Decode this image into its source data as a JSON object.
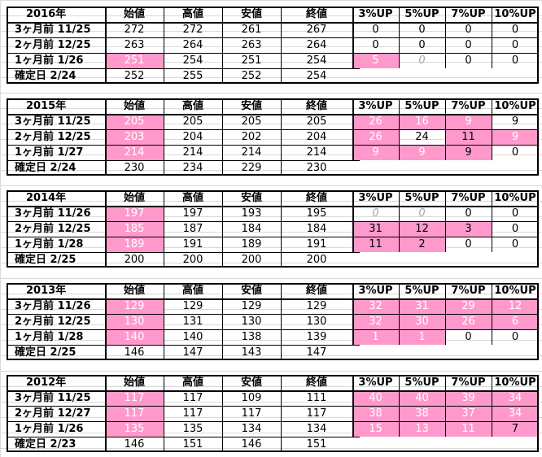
{
  "headers": [
    "始値",
    "高値",
    "安値",
    "終値",
    "3%UP",
    "5%UP",
    "7%UP",
    "10%UP"
  ],
  "blocks": [
    {
      "year": "2016年",
      "rows": [
        {
          "label": "3ヶ月前 11/25",
          "vals": [
            "272",
            "272",
            "261",
            "267",
            "0",
            "0",
            "0",
            "0"
          ]
        },
        {
          "label": "2ヶ月前 12/25",
          "vals": [
            "263",
            "264",
            "263",
            "264",
            "0",
            "0",
            "0",
            "0"
          ]
        },
        {
          "label": "1ヶ月前 1/26",
          "vals": [
            "251",
            "254",
            "251",
            "254",
            "5",
            "0",
            "0",
            "0"
          ]
        },
        {
          "label": "確定日 2/24",
          "vals": [
            "252",
            "255",
            "252",
            "254",
            "",
            "",
            "",
            ""
          ]
        }
      ]
    },
    {
      "year": "2015年",
      "rows": [
        {
          "label": "3ヶ月前 11/25",
          "vals": [
            "205",
            "205",
            "205",
            "205",
            "26",
            "16",
            "9",
            "9"
          ]
        },
        {
          "label": "2ヶ月前 12/25",
          "vals": [
            "203",
            "204",
            "202",
            "204",
            "26",
            "24",
            "11",
            "9"
          ]
        },
        {
          "label": "1ヶ月前 1/27",
          "vals": [
            "214",
            "214",
            "214",
            "214",
            "9",
            "9",
            "9",
            "0"
          ]
        },
        {
          "label": "確定日 2/24",
          "vals": [
            "230",
            "234",
            "229",
            "230",
            "",
            "",
            "",
            ""
          ]
        }
      ]
    },
    {
      "year": "2014年",
      "rows": [
        {
          "label": "3ヶ月前 11/26",
          "vals": [
            "197",
            "197",
            "193",
            "195",
            "0",
            "0",
            "0",
            "0"
          ]
        },
        {
          "label": "2ヶ月前 12/25",
          "vals": [
            "185",
            "187",
            "184",
            "184",
            "31",
            "12",
            "3",
            "0"
          ]
        },
        {
          "label": "1ヶ月前 1/28",
          "vals": [
            "189",
            "191",
            "189",
            "191",
            "11",
            "2",
            "0",
            "0"
          ]
        },
        {
          "label": "確定日 2/25",
          "vals": [
            "200",
            "200",
            "200",
            "200",
            "",
            "",
            "",
            ""
          ]
        }
      ]
    },
    {
      "year": "2013年",
      "rows": [
        {
          "label": "3ヶ月前 11/26",
          "vals": [
            "129",
            "129",
            "129",
            "129",
            "32",
            "31",
            "29",
            "12"
          ]
        },
        {
          "label": "2ヶ月前 12/25",
          "vals": [
            "130",
            "131",
            "130",
            "130",
            "32",
            "30",
            "26",
            "6"
          ]
        },
        {
          "label": "1ヶ月前 1/28",
          "vals": [
            "140",
            "140",
            "138",
            "139",
            "1",
            "1",
            "0",
            "0"
          ]
        },
        {
          "label": "確定日 2/25",
          "vals": [
            "146",
            "147",
            "143",
            "147",
            "",
            "",
            "",
            ""
          ]
        }
      ]
    },
    {
      "year": "2012年",
      "rows": [
        {
          "label": "3ヶ月前 11/25",
          "vals": [
            "117",
            "117",
            "109",
            "111",
            "40",
            "40",
            "39",
            "34"
          ]
        },
        {
          "label": "2ヶ月前 12/27",
          "vals": [
            "117",
            "117",
            "117",
            "117",
            "38",
            "38",
            "37",
            "34"
          ]
        },
        {
          "label": "1ヶ月前 1/26",
          "vals": [
            "135",
            "135",
            "134",
            "134",
            "15",
            "13",
            "11",
            "7"
          ]
        },
        {
          "label": "確定日 2/23",
          "vals": [
            "146",
            "151",
            "146",
            "151",
            "",
            "",
            "",
            ""
          ]
        }
      ]
    }
  ],
  "highlight_color": "#ff99cc",
  "highlights": [
    [
      [
        0,
        0,
        0,
        0,
        0,
        0,
        0,
        0
      ],
      [
        0,
        0,
        0,
        0,
        0,
        0,
        0,
        0
      ],
      [
        1,
        0,
        0,
        0,
        1,
        0,
        0,
        0
      ],
      [
        0,
        0,
        0,
        0,
        0,
        0,
        0,
        0
      ]
    ],
    [
      [
        1,
        0,
        0,
        0,
        1,
        1,
        1,
        0
      ],
      [
        1,
        0,
        0,
        0,
        1,
        0,
        1,
        1
      ],
      [
        1,
        0,
        0,
        0,
        1,
        1,
        1,
        0
      ],
      [
        0,
        0,
        0,
        0,
        0,
        0,
        0,
        0
      ]
    ],
    [
      [
        1,
        0,
        0,
        0,
        0,
        0,
        0,
        0
      ],
      [
        1,
        0,
        0,
        0,
        1,
        1,
        1,
        0
      ],
      [
        1,
        0,
        0,
        0,
        1,
        1,
        0,
        0
      ],
      [
        0,
        0,
        0,
        0,
        0,
        0,
        0,
        0
      ]
    ],
    [
      [
        1,
        0,
        0,
        0,
        1,
        1,
        1,
        1
      ],
      [
        1,
        0,
        0,
        0,
        1,
        1,
        1,
        1
      ],
      [
        1,
        0,
        0,
        0,
        1,
        1,
        0,
        0
      ],
      [
        0,
        0,
        0,
        0,
        0,
        0,
        0,
        0
      ]
    ],
    [
      [
        1,
        0,
        0,
        0,
        1,
        1,
        1,
        1
      ],
      [
        1,
        0,
        0,
        0,
        1,
        1,
        1,
        1
      ],
      [
        1,
        0,
        0,
        0,
        1,
        1,
        1,
        1
      ],
      [
        0,
        0,
        0,
        0,
        0,
        0,
        0,
        0
      ]
    ]
  ],
  "dark_text_cells": [
    [],
    [
      [
        1,
        5
      ],
      [
        1,
        6
      ],
      [
        2,
        6
      ]
    ],
    [
      [
        1,
        4
      ],
      [
        1,
        5
      ],
      [
        1,
        6
      ],
      [
        2,
        4
      ],
      [
        2,
        5
      ]
    ],
    [],
    [
      [
        2,
        7
      ]
    ]
  ],
  "grey_zero_cells": [
    [
      [
        2,
        5
      ]
    ],
    [],
    [
      [
        0,
        4
      ],
      [
        0,
        5
      ]
    ],
    [],
    []
  ]
}
